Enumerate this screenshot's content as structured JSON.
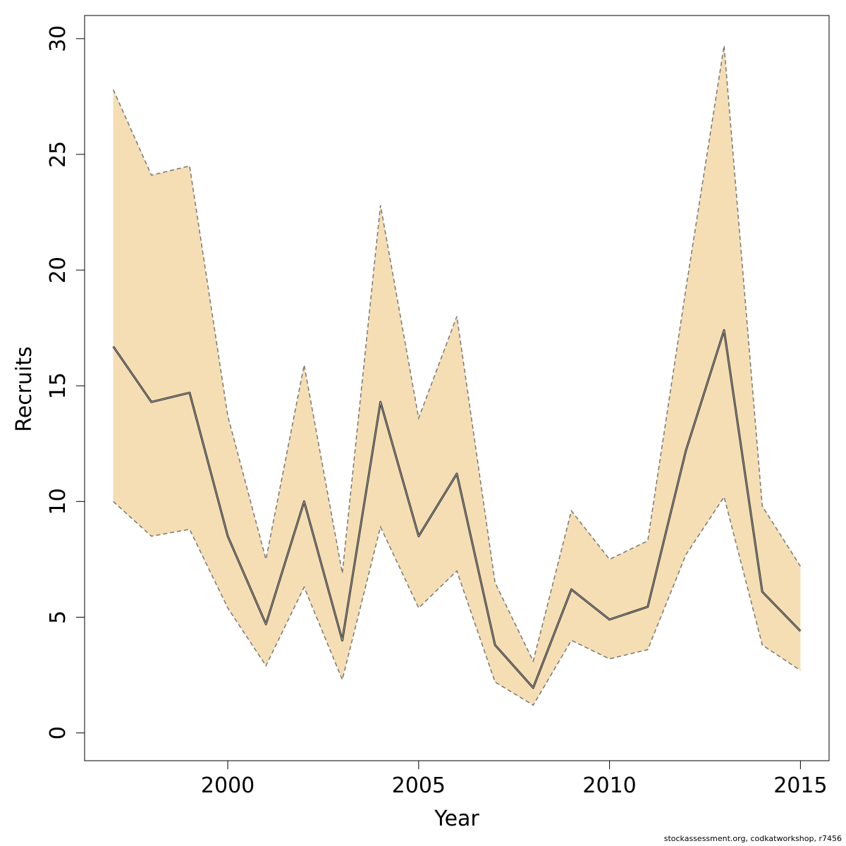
{
  "chart_data": {
    "type": "area",
    "xlabel": "Year",
    "ylabel": "Recruits",
    "xlim": [
      1996.25,
      2015.75
    ],
    "ylim": [
      -1.2,
      31.0
    ],
    "x_ticks": [
      2000,
      2005,
      2010,
      2015
    ],
    "y_ticks": [
      0,
      5,
      10,
      15,
      20,
      25,
      30
    ],
    "grid": false,
    "legend": "none",
    "colors": {
      "band": "#f5deb3",
      "band_edge": "#777777",
      "line": "#333333"
    },
    "x": [
      1997,
      1998,
      1999,
      2000,
      2001,
      2002,
      2003,
      2004,
      2005,
      2006,
      2007,
      2008,
      2009,
      2010,
      2011,
      2012,
      2013,
      2014,
      2015
    ],
    "series": [
      {
        "role": "estimate",
        "values": [
          16.7,
          14.3,
          14.7,
          8.5,
          4.7,
          10.0,
          4.0,
          14.3,
          8.5,
          11.2,
          3.8,
          1.95,
          6.2,
          4.9,
          5.45,
          12.2,
          17.4,
          6.1,
          4.4
        ]
      },
      {
        "role": "upper",
        "values": [
          27.8,
          24.1,
          24.5,
          13.7,
          7.5,
          15.9,
          6.9,
          22.8,
          13.6,
          18.0,
          6.5,
          3.1,
          9.6,
          7.5,
          8.3,
          19.2,
          29.7,
          9.8,
          7.2
        ]
      },
      {
        "role": "lower",
        "values": [
          10.0,
          8.5,
          8.8,
          5.4,
          2.9,
          6.3,
          2.3,
          8.9,
          5.4,
          7.0,
          2.2,
          1.2,
          4.0,
          3.2,
          3.6,
          7.7,
          10.2,
          3.8,
          2.7
        ]
      }
    ]
  },
  "footer": {
    "note": "stockassessment.org, codkatworkshop, r7456"
  }
}
